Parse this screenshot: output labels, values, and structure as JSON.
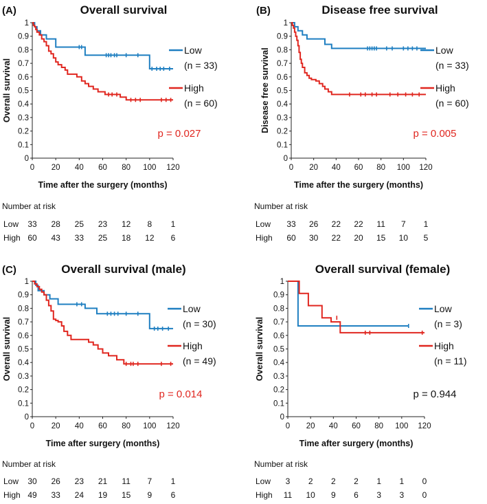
{
  "chart_data": [
    {
      "type": "line",
      "panel_label": "(A)",
      "title": "Overall survival",
      "xlabel": "Time after the surgery (months)",
      "ylabel": "Overall survival",
      "xlim": [
        0,
        120
      ],
      "ylim": [
        0,
        1
      ],
      "xticks": [
        "0",
        "20",
        "40",
        "60",
        "80",
        "100",
        "120"
      ],
      "yticks": [
        "0",
        "0.1",
        "0.2",
        "0.3",
        "0.4",
        "0.5",
        "0.6",
        "0.7",
        "0.8",
        "0.9",
        "1"
      ],
      "series": [
        {
          "name": "Low",
          "n_label": "(n = 33)",
          "color": "#1f7fc1",
          "steps": [
            [
              0,
              1
            ],
            [
              2,
              0.97
            ],
            [
              4,
              0.94
            ],
            [
              7,
              0.91
            ],
            [
              12,
              0.88
            ],
            [
              20,
              0.82
            ],
            [
              45,
              0.76
            ],
            [
              100,
              0.66
            ],
            [
              120,
              0.66
            ]
          ],
          "censored": [
            [
              40,
              0.82
            ],
            [
              42,
              0.82
            ],
            [
              63,
              0.76
            ],
            [
              65,
              0.76
            ],
            [
              67,
              0.76
            ],
            [
              70,
              0.76
            ],
            [
              72,
              0.76
            ],
            [
              80,
              0.76
            ],
            [
              90,
              0.76
            ],
            [
              102,
              0.66
            ],
            [
              106,
              0.66
            ],
            [
              109,
              0.66
            ],
            [
              112,
              0.66
            ],
            [
              117,
              0.66
            ]
          ]
        },
        {
          "name": "High",
          "n_label": "(n = 60)",
          "color": "#e0261f",
          "steps": [
            [
              0,
              1
            ],
            [
              1,
              0.98
            ],
            [
              2,
              0.97
            ],
            [
              3,
              0.95
            ],
            [
              4,
              0.93
            ],
            [
              6,
              0.91
            ],
            [
              8,
              0.88
            ],
            [
              10,
              0.86
            ],
            [
              12,
              0.83
            ],
            [
              14,
              0.79
            ],
            [
              16,
              0.77
            ],
            [
              18,
              0.74
            ],
            [
              20,
              0.71
            ],
            [
              22,
              0.69
            ],
            [
              25,
              0.67
            ],
            [
              28,
              0.65
            ],
            [
              30,
              0.62
            ],
            [
              38,
              0.6
            ],
            [
              42,
              0.57
            ],
            [
              45,
              0.55
            ],
            [
              48,
              0.53
            ],
            [
              52,
              0.51
            ],
            [
              56,
              0.49
            ],
            [
              62,
              0.47
            ],
            [
              75,
              0.45
            ],
            [
              80,
              0.43
            ],
            [
              120,
              0.43
            ]
          ],
          "censored": [
            [
              65,
              0.47
            ],
            [
              68,
              0.47
            ],
            [
              72,
              0.47
            ],
            [
              84,
              0.43
            ],
            [
              88,
              0.43
            ],
            [
              92,
              0.43
            ],
            [
              110,
              0.43
            ],
            [
              114,
              0.43
            ],
            [
              118,
              0.43
            ]
          ]
        }
      ],
      "pvalue": "p = 0.027",
      "pvalue_color": "#e0261f",
      "risk_header": "Number at risk",
      "risk": [
        {
          "group": "Low",
          "counts": [
            "33",
            "28",
            "25",
            "23",
            "12",
            "8",
            "1"
          ]
        },
        {
          "group": "High",
          "counts": [
            "60",
            "43",
            "33",
            "25",
            "18",
            "12",
            "6"
          ]
        }
      ]
    },
    {
      "type": "line",
      "panel_label": "(B)",
      "title": "Disease free survival",
      "xlabel": "Time after the surgery (months)",
      "ylabel": "Disease free survival",
      "xlim": [
        0,
        120
      ],
      "ylim": [
        0,
        1
      ],
      "xticks": [
        "0",
        "20",
        "40",
        "60",
        "80",
        "100",
        "120"
      ],
      "yticks": [
        "0",
        "0.1",
        "0.2",
        "0.3",
        "0.4",
        "0.5",
        "0.6",
        "0.7",
        "0.8",
        "0.9",
        "1"
      ],
      "series": [
        {
          "name": "Low",
          "n_label": "(n = 33)",
          "color": "#1f7fc1",
          "steps": [
            [
              0,
              1
            ],
            [
              3,
              0.97
            ],
            [
              6,
              0.94
            ],
            [
              10,
              0.91
            ],
            [
              14,
              0.88
            ],
            [
              30,
              0.84
            ],
            [
              36,
              0.81
            ],
            [
              120,
              0.81
            ]
          ],
          "censored": [
            [
              68,
              0.81
            ],
            [
              70,
              0.81
            ],
            [
              72,
              0.81
            ],
            [
              74,
              0.81
            ],
            [
              76,
              0.81
            ],
            [
              85,
              0.81
            ],
            [
              90,
              0.81
            ],
            [
              100,
              0.81
            ],
            [
              104,
              0.81
            ],
            [
              108,
              0.81
            ],
            [
              112,
              0.81
            ]
          ]
        },
        {
          "name": "High",
          "n_label": "(n = 60)",
          "color": "#e0261f",
          "steps": [
            [
              0,
              1
            ],
            [
              1,
              0.98
            ],
            [
              2,
              0.96
            ],
            [
              3,
              0.93
            ],
            [
              4,
              0.9
            ],
            [
              5,
              0.87
            ],
            [
              6,
              0.83
            ],
            [
              7,
              0.78
            ],
            [
              8,
              0.73
            ],
            [
              9,
              0.7
            ],
            [
              10,
              0.67
            ],
            [
              12,
              0.63
            ],
            [
              14,
              0.61
            ],
            [
              16,
              0.59
            ],
            [
              18,
              0.58
            ],
            [
              22,
              0.57
            ],
            [
              25,
              0.55
            ],
            [
              28,
              0.53
            ],
            [
              30,
              0.51
            ],
            [
              33,
              0.49
            ],
            [
              36,
              0.47
            ],
            [
              120,
              0.47
            ]
          ],
          "censored": [
            [
              52,
              0.47
            ],
            [
              62,
              0.47
            ],
            [
              66,
              0.47
            ],
            [
              72,
              0.47
            ],
            [
              76,
              0.47
            ],
            [
              88,
              0.47
            ],
            [
              95,
              0.47
            ],
            [
              102,
              0.47
            ],
            [
              108,
              0.47
            ],
            [
              114,
              0.47
            ]
          ]
        }
      ],
      "pvalue": "p = 0.005",
      "pvalue_color": "#e0261f",
      "risk_header": "Number at risk",
      "risk": [
        {
          "group": "Low",
          "counts": [
            "33",
            "26",
            "22",
            "22",
            "11",
            "7",
            "1"
          ]
        },
        {
          "group": "High",
          "counts": [
            "60",
            "30",
            "22",
            "20",
            "15",
            "10",
            "5"
          ]
        }
      ]
    },
    {
      "type": "line",
      "panel_label": "(C)",
      "title": "Overall survival (male)",
      "xlabel": "Time after surgery (months)",
      "ylabel": "Overall survival",
      "xlim": [
        0,
        120
      ],
      "ylim": [
        0,
        1
      ],
      "xticks": [
        "0",
        "20",
        "40",
        "60",
        "80",
        "100",
        "120"
      ],
      "yticks": [
        "0",
        "0.1",
        "0.2",
        "0.3",
        "0.4",
        "0.5",
        "0.6",
        "0.7",
        "0.8",
        "0.9",
        "1"
      ],
      "series": [
        {
          "name": "Low",
          "n_label": "(n = 30)",
          "color": "#1f7fc1",
          "steps": [
            [
              0,
              1
            ],
            [
              3,
              0.97
            ],
            [
              5,
              0.93
            ],
            [
              10,
              0.9
            ],
            [
              15,
              0.87
            ],
            [
              22,
              0.83
            ],
            [
              45,
              0.8
            ],
            [
              55,
              0.76
            ],
            [
              100,
              0.65
            ],
            [
              120,
              0.65
            ]
          ],
          "censored": [
            [
              38,
              0.83
            ],
            [
              42,
              0.83
            ],
            [
              64,
              0.76
            ],
            [
              67,
              0.76
            ],
            [
              70,
              0.76
            ],
            [
              73,
              0.76
            ],
            [
              80,
              0.76
            ],
            [
              90,
              0.76
            ],
            [
              104,
              0.65
            ],
            [
              107,
              0.65
            ],
            [
              111,
              0.65
            ],
            [
              116,
              0.65
            ]
          ]
        },
        {
          "name": "High",
          "n_label": "(n = 49)",
          "color": "#e0261f",
          "steps": [
            [
              0,
              1
            ],
            [
              2,
              0.98
            ],
            [
              4,
              0.96
            ],
            [
              6,
              0.94
            ],
            [
              8,
              0.92
            ],
            [
              10,
              0.9
            ],
            [
              12,
              0.86
            ],
            [
              14,
              0.82
            ],
            [
              16,
              0.78
            ],
            [
              18,
              0.72
            ],
            [
              20,
              0.71
            ],
            [
              22,
              0.7
            ],
            [
              25,
              0.67
            ],
            [
              27,
              0.63
            ],
            [
              30,
              0.6
            ],
            [
              33,
              0.57
            ],
            [
              48,
              0.55
            ],
            [
              52,
              0.53
            ],
            [
              56,
              0.5
            ],
            [
              60,
              0.47
            ],
            [
              65,
              0.45
            ],
            [
              72,
              0.42
            ],
            [
              78,
              0.39
            ],
            [
              120,
              0.39
            ]
          ],
          "censored": [
            [
              80,
              0.39
            ],
            [
              84,
              0.39
            ],
            [
              86,
              0.39
            ],
            [
              90,
              0.39
            ],
            [
              110,
              0.39
            ],
            [
              118,
              0.39
            ]
          ]
        }
      ],
      "pvalue": "p = 0.014",
      "pvalue_color": "#e0261f",
      "risk_header": "Number at risk",
      "risk": [
        {
          "group": "Low",
          "counts": [
            "30",
            "26",
            "23",
            "21",
            "11",
            "7",
            "1"
          ]
        },
        {
          "group": "High",
          "counts": [
            "49",
            "33",
            "24",
            "19",
            "15",
            "9",
            "6"
          ]
        }
      ]
    },
    {
      "type": "line",
      "panel_label": "",
      "title": "Overall survival (female)",
      "xlabel": "Time after surgery (months)",
      "ylabel": "Overall survival",
      "xlim": [
        0,
        120
      ],
      "ylim": [
        0,
        1
      ],
      "xticks": [
        "0",
        "20",
        "40",
        "60",
        "80",
        "100",
        "120"
      ],
      "yticks": [
        "0",
        "0.1",
        "0.2",
        "0.3",
        "0.4",
        "0.5",
        "0.6",
        "0.7",
        "0.8",
        "0.9",
        "1"
      ],
      "series": [
        {
          "name": "Low",
          "n_label": "(n = 3)",
          "color": "#1f7fc1",
          "steps": [
            [
              0,
              1
            ],
            [
              9,
              1
            ],
            [
              9,
              0.67
            ],
            [
              106,
              0.67
            ]
          ],
          "censored": [
            [
              106,
              0.67
            ]
          ]
        },
        {
          "name": "High",
          "n_label": "(n = 11)",
          "color": "#e0261f",
          "steps": [
            [
              0,
              1
            ],
            [
              10,
              1
            ],
            [
              10,
              0.91
            ],
            [
              18,
              0.91
            ],
            [
              18,
              0.82
            ],
            [
              30,
              0.82
            ],
            [
              30,
              0.73
            ],
            [
              38,
              0.73
            ],
            [
              38,
              0.7
            ],
            [
              46,
              0.7
            ],
            [
              46,
              0.62
            ],
            [
              120,
              0.62
            ]
          ],
          "censored": [
            [
              43,
              0.73
            ],
            [
              68,
              0.62
            ],
            [
              72,
              0.62
            ],
            [
              118,
              0.62
            ]
          ]
        }
      ],
      "pvalue": "p = 0.944",
      "pvalue_color": "#111111",
      "risk_header": "Number at risk",
      "risk": [
        {
          "group": "Low",
          "counts": [
            "3",
            "2",
            "2",
            "2",
            "1",
            "1",
            "0"
          ]
        },
        {
          "group": "High",
          "counts": [
            "11",
            "10",
            "9",
            "6",
            "3",
            "3",
            "0"
          ]
        }
      ]
    }
  ]
}
